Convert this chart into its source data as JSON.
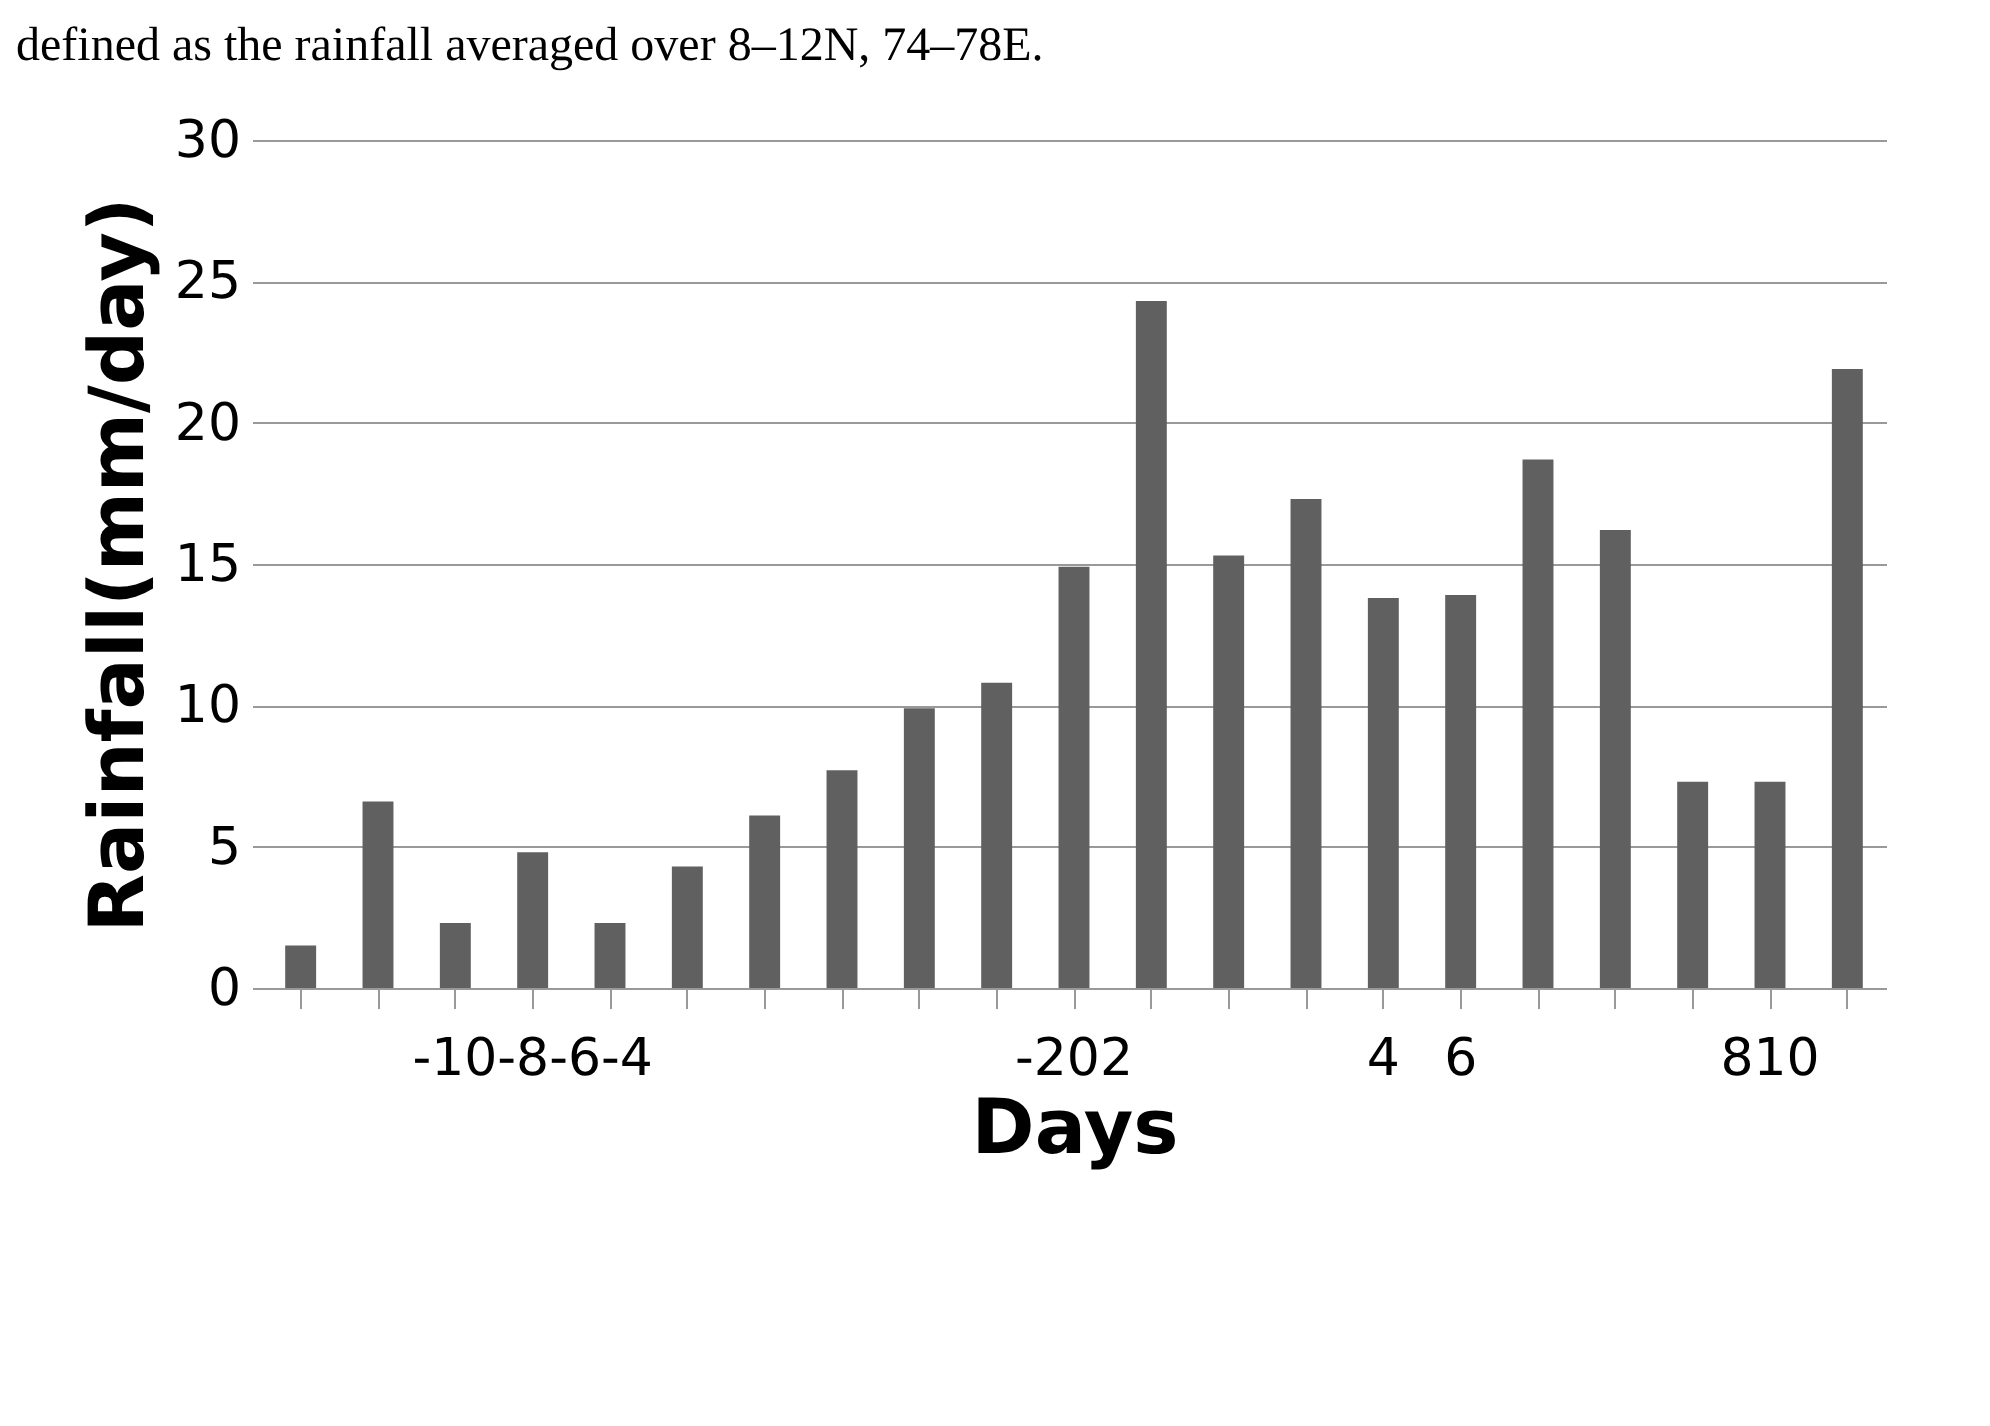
{
  "chart_data": {
    "type": "bar",
    "annotations": [
      "defined as the rainfall averaged over 8–12N, 74–78E."
    ],
    "xlabel": "Days",
    "ylabel": "Rainfall(mm/day)",
    "categories": [
      null,
      null,
      null,
      "-10-8-6-4",
      null,
      null,
      null,
      null,
      null,
      null,
      "-202",
      null,
      null,
      null,
      "4",
      "6",
      null,
      null,
      null,
      "810",
      null
    ],
    "values": [
      1.5,
      6.6,
      2.3,
      4.8,
      2.3,
      4.3,
      6.1,
      7.7,
      9.9,
      10.8,
      14.9,
      24.3,
      15.3,
      17.3,
      13.8,
      13.9,
      18.7,
      16.2,
      7.3,
      7.3,
      21.9
    ],
    "color": "#606060",
    "ylim": [
      0,
      30
    ],
    "yticks": [
      0,
      5,
      10,
      15,
      20,
      25,
      30
    ],
    "grid": "y"
  }
}
